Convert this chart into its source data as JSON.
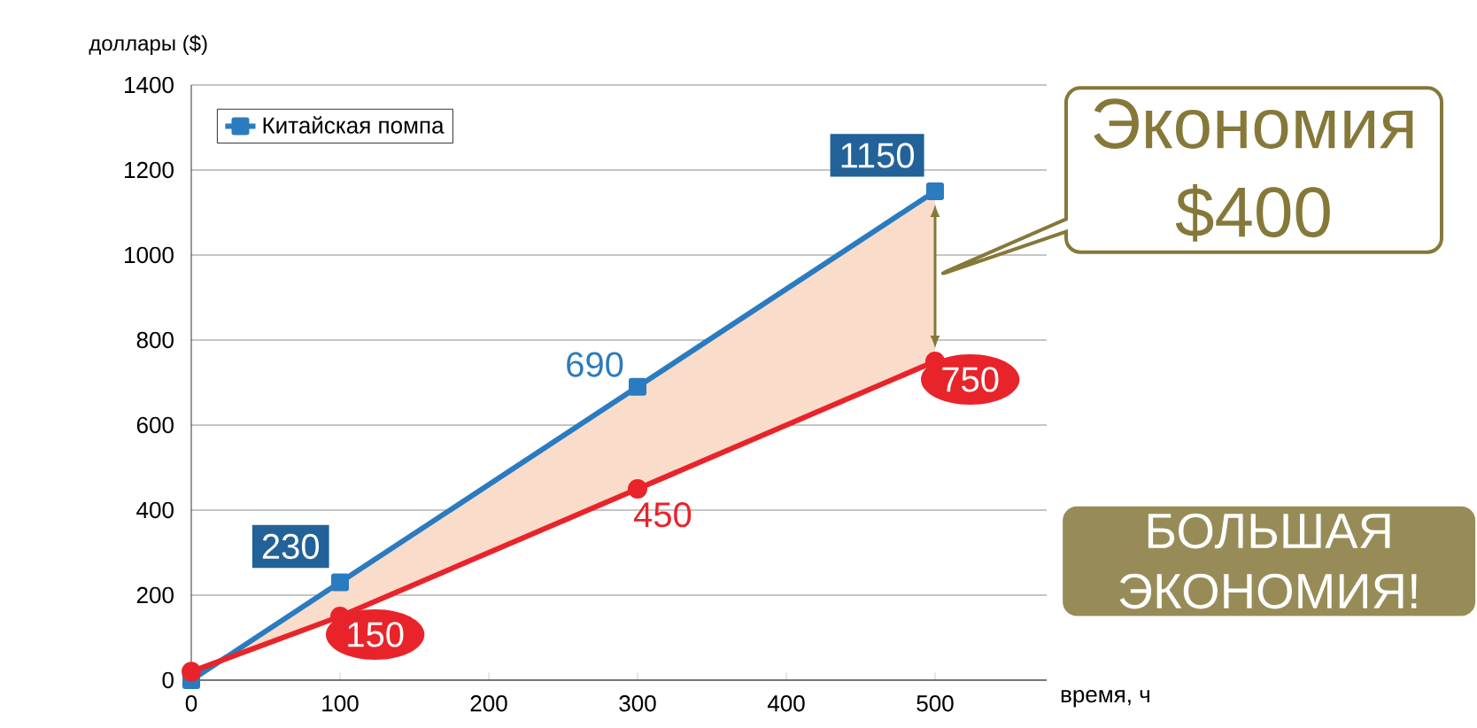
{
  "chart_data": {
    "type": "line",
    "ylabel": "доллары ($)",
    "xlabel": "время, ч",
    "xlim": [
      0,
      575
    ],
    "xticks": [
      0,
      100,
      200,
      300,
      400,
      500
    ],
    "ylim": [
      0,
      1400
    ],
    "yticks": [
      0,
      200,
      400,
      600,
      800,
      1000,
      1200,
      1400
    ],
    "grid": "y",
    "legend": "top left",
    "series": [
      {
        "color": "#e8242a",
        "marker": "circle",
        "x": [
          0,
          100,
          300,
          500
        ],
        "values": [
          20,
          150,
          450,
          750
        ],
        "value_labels": [
          null,
          "150",
          "450",
          "750"
        ],
        "lower": [
          20,
          150,
          450,
          750
        ],
        "upper": [
          0,
          230,
          690,
          1150
        ]
      },
      {
        "name": "Китайская помпа",
        "color": "#2a7bbf",
        "marker": "square",
        "x": [
          0,
          100,
          300,
          500
        ],
        "values": [
          0,
          230,
          690,
          1150
        ],
        "value_labels": [
          null,
          "230",
          "690",
          "1150"
        ]
      }
    ],
    "annotations": [
      {
        "text": "Экономия $400",
        "x": 500,
        "y": 950
      },
      "БОЛЬШАЯ ЭКОНОМИЯ!"
    ]
  }
}
